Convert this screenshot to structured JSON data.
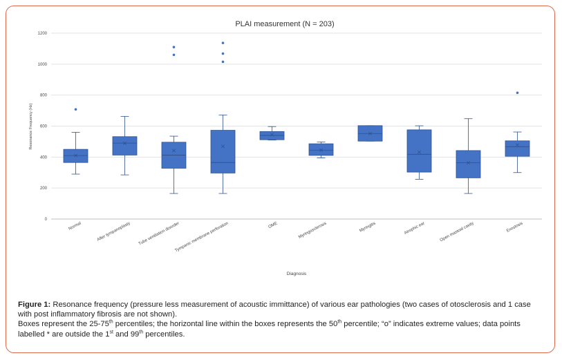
{
  "chart_data": {
    "type": "boxplot",
    "title": "PLAI measurement (N = 203)",
    "xlabel": "Diagnosis",
    "ylabel": "Resonance Frequency (Hz)",
    "ylim": [
      0,
      1200
    ],
    "yticks": [
      "0",
      "200",
      "400",
      "600",
      "800",
      "1000",
      "1200"
    ],
    "grid": true,
    "color": "#4472c4",
    "stroke": "#2f528f",
    "categories": [
      {
        "label": "Normal",
        "min": 290,
        "q1": 365,
        "median": 410,
        "q3": 450,
        "max": 560,
        "mean": 410,
        "outliers": [
          708
        ]
      },
      {
        "label": "After tympanoplasty",
        "min": 285,
        "q1": 413,
        "median": 490,
        "q3": 532,
        "max": 663,
        "mean": 490,
        "outliers": []
      },
      {
        "label": "Tube ventilation disorder",
        "min": 165,
        "q1": 328,
        "median": 413,
        "q3": 496,
        "max": 535,
        "mean": 442,
        "outliers": [
          1060,
          1110
        ]
      },
      {
        "label": "Tympanic membrane perforation",
        "min": 165,
        "q1": 297,
        "median": 365,
        "q3": 573,
        "max": 672,
        "mean": 470,
        "outliers": [
          1015,
          1068,
          1137
        ]
      },
      {
        "label": "OME",
        "min": 510,
        "q1": 512,
        "median": 540,
        "q3": 565,
        "max": 597,
        "mean": 545,
        "outliers": []
      },
      {
        "label": "Myringosclerosis",
        "min": 395,
        "q1": 411,
        "median": 445,
        "q3": 486,
        "max": 498,
        "mean": 445,
        "outliers": []
      },
      {
        "label": "Myringitis",
        "min": 503,
        "q1": 503,
        "median": 552,
        "q3": 603,
        "max": 603,
        "mean": 552,
        "outliers": []
      },
      {
        "label": "Atrophic ear",
        "min": 257,
        "q1": 303,
        "median": 418,
        "q3": 576,
        "max": 602,
        "mean": 432,
        "outliers": []
      },
      {
        "label": "Open mastoid cavity",
        "min": 165,
        "q1": 266,
        "median": 363,
        "q3": 442,
        "max": 648,
        "mean": 363,
        "outliers": []
      },
      {
        "label": "Exostosis",
        "min": 300,
        "q1": 405,
        "median": 467,
        "q3": 505,
        "max": 562,
        "mean": 478,
        "outliers": [
          815
        ]
      }
    ]
  },
  "caption": {
    "fig_label": "Figure 1:",
    "line1": " Resonance frequency (pressure less measurement of acoustic immittance) of various ear pathologies (two cases of otosclerosis and 1 case with post inflammatory fibrosis are not shown).",
    "line2_a": "Boxes represent the 25-75",
    "sup_th1": "th",
    "line2_b": " percentiles; the horizontal line within the boxes represents the 50",
    "sup_th2": "th",
    "line2_c": " percentile; “o” indicates extreme values; data points labelled * are outside the 1",
    "sup_st": "st",
    "line2_d": " and 99",
    "sup_th3": "th",
    "line2_e": " percentiles."
  }
}
